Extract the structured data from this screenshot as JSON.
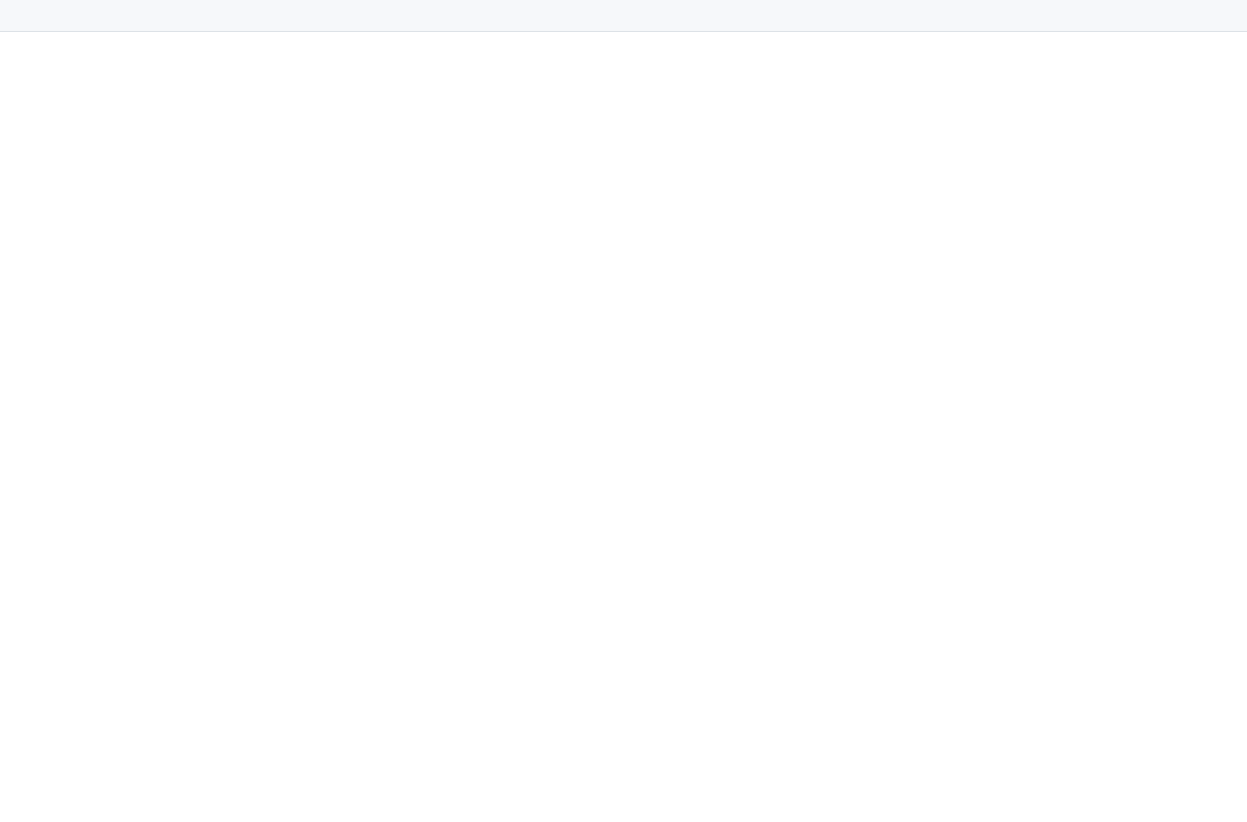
{
  "window": {
    "title": ""
  },
  "main": {
    "heading": ""
  }
}
